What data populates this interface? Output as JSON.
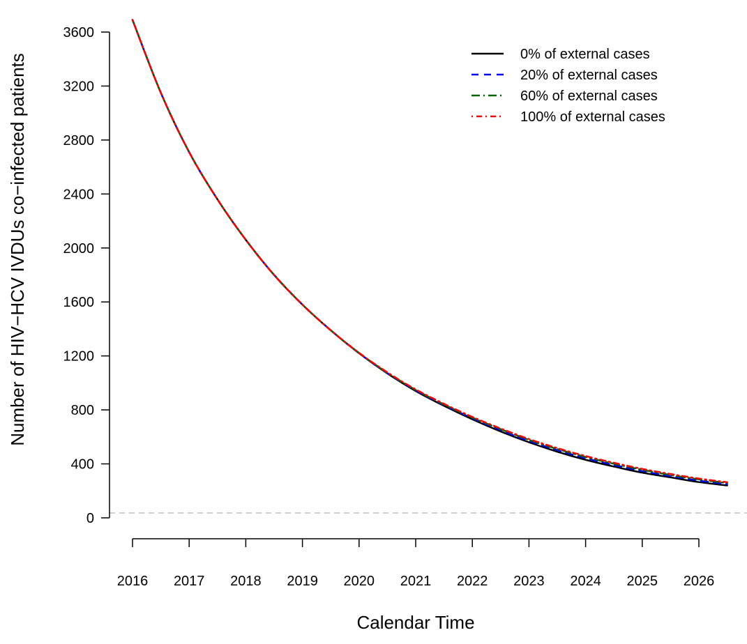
{
  "chart_data": {
    "type": "line",
    "xlabel": "Calendar Time",
    "ylabel": "Number of HIV−HCV IVDUs co−infected patients",
    "xlim": [
      2016,
      2026.5
    ],
    "ylim": [
      0,
      3600
    ],
    "x_ticks": [
      "2016",
      "2017",
      "2018",
      "2019",
      "2020",
      "2021",
      "2022",
      "2023",
      "2024",
      "2025",
      "2026"
    ],
    "y_ticks": [
      "0",
      "400",
      "800",
      "1200",
      "1600",
      "2000",
      "2400",
      "2800",
      "3200",
      "3600"
    ],
    "reference_line": {
      "y": 36,
      "style": "dashed",
      "color": "#bdbdbd"
    },
    "x": [
      2016,
      2016.5,
      2017,
      2017.5,
      2018,
      2018.5,
      2019,
      2019.5,
      2020,
      2020.5,
      2021,
      2021.5,
      2022,
      2022.5,
      2023,
      2023.5,
      2024,
      2024.5,
      2025,
      2025.5,
      2026,
      2026.5
    ],
    "series": [
      {
        "name": "0% of external cases",
        "color": "#000000",
        "dash": "",
        "values": [
          3690,
          3150,
          2710,
          2360,
          2060,
          1800,
          1580,
          1390,
          1220,
          1070,
          940,
          830,
          730,
          640,
          560,
          490,
          430,
          380,
          335,
          300,
          265,
          240
        ]
      },
      {
        "name": "20% of external cases",
        "color": "#0000ff",
        "dash": "10,8",
        "values": [
          3690,
          3150,
          2710,
          2360,
          2060,
          1800,
          1580,
          1390,
          1220,
          1072,
          945,
          836,
          738,
          650,
          570,
          502,
          442,
          392,
          347,
          310,
          276,
          250
        ]
      },
      {
        "name": "60% of external cases",
        "color": "#006400",
        "dash": "12,5,2,5",
        "values": [
          3690,
          3150,
          2710,
          2360,
          2060,
          1800,
          1580,
          1390,
          1222,
          1075,
          948,
          840,
          743,
          657,
          578,
          510,
          451,
          401,
          356,
          318,
          285,
          258
        ]
      },
      {
        "name": "100% of external cases",
        "color": "#ff0000",
        "dash": "2,5,8,5",
        "values": [
          3690,
          3150,
          2710,
          2360,
          2060,
          1800,
          1580,
          1390,
          1223,
          1078,
          952,
          845,
          748,
          662,
          584,
          517,
          458,
          408,
          363,
          325,
          291,
          264
        ]
      }
    ],
    "legend": "top-right",
    "grid": false
  }
}
